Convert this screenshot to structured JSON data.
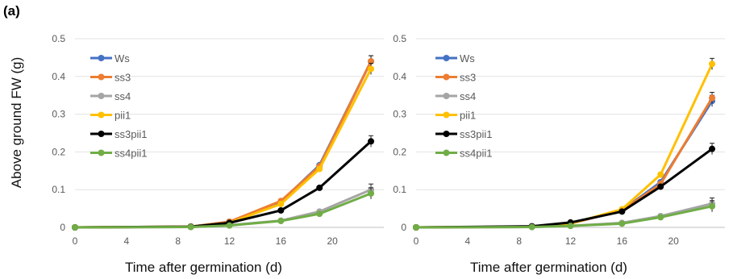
{
  "figure": {
    "panel_label": "(a)",
    "ylabel": "Above ground FW (g)",
    "xlabel_left": "Time after germination (d)",
    "xlabel_right": "Time after germination (d)"
  },
  "chart_data": [
    {
      "type": "line",
      "xlabel": "Time after germination (d)",
      "ylabel": "Above ground FW (g)",
      "xlim": [
        0,
        24
      ],
      "ylim": [
        0,
        0.5
      ],
      "xticks": [
        0,
        4,
        8,
        12,
        16,
        20
      ],
      "yticks": [
        "0",
        "0.1",
        "0.2",
        "0.3",
        "0.4",
        "0.5"
      ],
      "x": [
        0,
        9,
        12,
        16,
        19,
        23
      ],
      "legend_position": "top-left",
      "grid": "horizontal",
      "series": [
        {
          "name": "Ws",
          "color": "#4472C4",
          "values": [
            0,
            0.002,
            0.015,
            0.068,
            0.165,
            0.44
          ]
        },
        {
          "name": "ss3",
          "color": "#ED7D31",
          "values": [
            0,
            0.002,
            0.015,
            0.07,
            0.162,
            0.44
          ]
        },
        {
          "name": "ss4",
          "color": "#A5A5A5",
          "values": [
            0,
            0.001,
            0.006,
            0.018,
            0.042,
            0.1
          ]
        },
        {
          "name": "pii1",
          "color": "#FFC000",
          "values": [
            0,
            0.002,
            0.012,
            0.062,
            0.155,
            0.42
          ]
        },
        {
          "name": "ss3pii1",
          "color": "#000000",
          "values": [
            0,
            0.002,
            0.012,
            0.045,
            0.105,
            0.228
          ]
        },
        {
          "name": "ss4pii1",
          "color": "#70AD47",
          "values": [
            0,
            0.001,
            0.005,
            0.017,
            0.036,
            0.09
          ]
        }
      ]
    },
    {
      "type": "line",
      "xlabel": "Time after germination (d)",
      "ylabel": "",
      "xlim": [
        0,
        24
      ],
      "ylim": [
        0,
        0.5
      ],
      "xticks": [
        0,
        4,
        8,
        12,
        16,
        20
      ],
      "yticks": [
        "0",
        "0.1",
        "0.2",
        "0.3",
        "0.4",
        "0.5"
      ],
      "x": [
        0,
        9,
        12,
        16,
        19,
        23
      ],
      "legend_position": "top-left",
      "grid": "horizontal",
      "series": [
        {
          "name": "Ws",
          "color": "#4472C4",
          "values": [
            0,
            0.002,
            0.01,
            0.045,
            0.12,
            0.335
          ]
        },
        {
          "name": "ss3",
          "color": "#ED7D31",
          "values": [
            0,
            0.002,
            0.01,
            0.045,
            0.115,
            0.343
          ]
        },
        {
          "name": "ss4",
          "color": "#A5A5A5",
          "values": [
            0,
            0.001,
            0.004,
            0.012,
            0.03,
            0.063
          ]
        },
        {
          "name": "pii1",
          "color": "#FFC000",
          "values": [
            0,
            0.002,
            0.01,
            0.048,
            0.14,
            0.433
          ]
        },
        {
          "name": "ss3pii1",
          "color": "#000000",
          "values": [
            0,
            0.003,
            0.013,
            0.042,
            0.108,
            0.208
          ]
        },
        {
          "name": "ss4pii1",
          "color": "#70AD47",
          "values": [
            0,
            0.001,
            0.004,
            0.01,
            0.027,
            0.056
          ]
        }
      ]
    }
  ]
}
